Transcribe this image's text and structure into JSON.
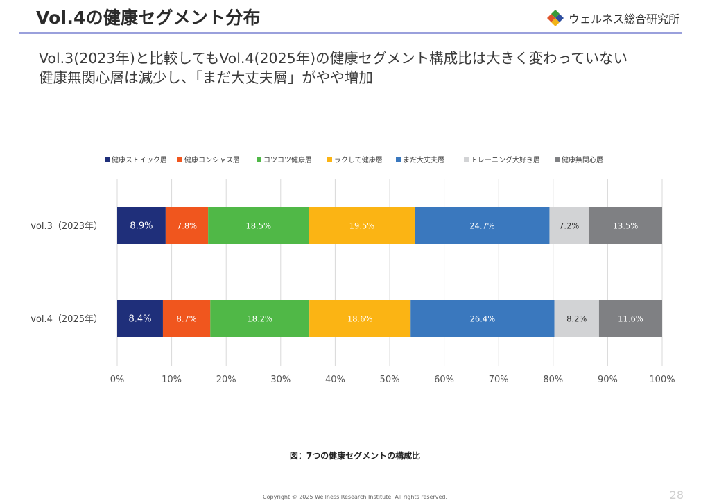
{
  "header": {
    "title": "Vol.4の健康セグメント分布",
    "logo_text": "ウェルネス総合研究所"
  },
  "headline": {
    "line1": "Vol.3(2023年)と比較してもVol.4(2025年)の健康セグメント構成比は大きく変わっていない",
    "line2": "健康無関心層は減少し、「まだ大丈夫層」がやや増加"
  },
  "chart_data": {
    "type": "bar",
    "orientation": "horizontal",
    "stacked": "percent",
    "categories": [
      "vol.3（2023年）",
      "vol.4（2025年）"
    ],
    "series": [
      {
        "name": "健康ストイック層",
        "color": "#1f2f7a",
        "values": [
          8.9,
          8.4
        ],
        "labels": [
          "8.9%",
          "8.4%"
        ]
      },
      {
        "name": "健康コンシャス層",
        "color": "#f0561e",
        "values": [
          7.8,
          8.7
        ],
        "labels": [
          "7.8%",
          "8.7%"
        ]
      },
      {
        "name": "コツコツ健康層",
        "color": "#50b847",
        "values": [
          18.5,
          18.2
        ],
        "labels": [
          "18.5%",
          "18.2%"
        ]
      },
      {
        "name": "ラクして健康層",
        "color": "#fbb414",
        "values": [
          19.5,
          18.6
        ],
        "labels": [
          "19.5%",
          "18.6%"
        ]
      },
      {
        "name": "まだ大丈夫層",
        "color": "#3a78be",
        "values": [
          24.7,
          26.4
        ],
        "labels": [
          "24.7%",
          "26.4%"
        ]
      },
      {
        "name": "トレーニング大好き層",
        "color": "#d2d3d5",
        "values": [
          7.2,
          8.2
        ],
        "labels": [
          "7.2%",
          "8.2%"
        ]
      },
      {
        "name": "健康無関心層",
        "color": "#7f8083",
        "values": [
          13.5,
          11.6
        ],
        "labels": [
          "13.5%",
          "11.6%"
        ]
      }
    ],
    "x_ticks": [
      "0%",
      "10%",
      "20%",
      "30%",
      "40%",
      "50%",
      "60%",
      "70%",
      "80%",
      "90%",
      "100%"
    ],
    "xlim": [
      0,
      100
    ],
    "grid": "vertical",
    "legend_position": "top"
  },
  "caption": "図：7つの健康セグメントの構成比",
  "footer": {
    "copyright": "Copyright © 2025 Wellness Research Institute. All rights reserved.",
    "page_number": "28"
  }
}
